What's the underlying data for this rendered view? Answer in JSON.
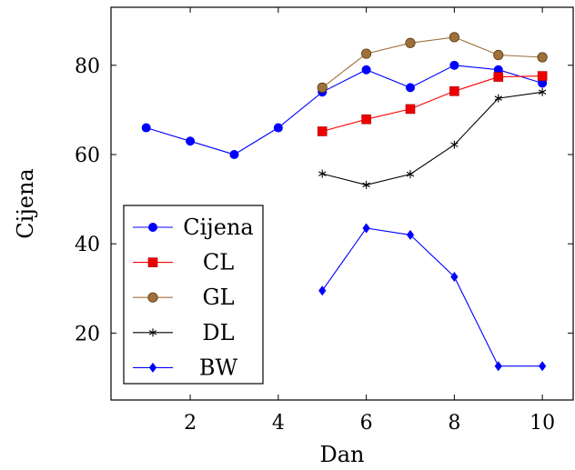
{
  "chart_data": {
    "type": "line",
    "title": "",
    "xlabel": "Dan",
    "ylabel": "Cijena",
    "xlim": [
      0.2,
      10.7
    ],
    "ylim": [
      5,
      93
    ],
    "xticks": [
      2,
      4,
      6,
      8,
      10
    ],
    "yticks": [
      20,
      40,
      60,
      80
    ],
    "grid": false,
    "legend_position": "bottom-left",
    "series": [
      {
        "name": "Cijena",
        "color": "#0000ff",
        "marker": "circle",
        "x": [
          1,
          2,
          3,
          4,
          5,
          6,
          7,
          8,
          9,
          10
        ],
        "y": [
          66,
          63,
          60,
          66,
          74,
          79,
          75,
          80,
          79,
          76
        ]
      },
      {
        "name": "CL",
        "color": "#ff0000",
        "line_color": "#ff0000",
        "marker": "square",
        "x": [
          5,
          6,
          7,
          8,
          9,
          10
        ],
        "y": [
          65.2,
          67.9,
          70.2,
          74.2,
          77.4,
          77.6
        ]
      },
      {
        "name": "GL",
        "color": "#a0703a",
        "line_color": "#a0703a",
        "marker": "circle-brown",
        "x": [
          5,
          6,
          7,
          8,
          9,
          10
        ],
        "y": [
          75,
          82.6,
          85,
          86.3,
          82.3,
          81.8
        ]
      },
      {
        "name": "DL",
        "color": "#000000",
        "line_color": "#000000",
        "marker": "asterisk",
        "x": [
          5,
          6,
          7,
          8,
          9,
          10
        ],
        "y": [
          55.7,
          53.2,
          55.6,
          62.2,
          72.6,
          74
        ]
      },
      {
        "name": "BW",
        "color": "#0000ff",
        "line_color": "#0000ff",
        "marker": "diamond",
        "x": [
          5,
          6,
          7,
          8,
          9,
          10
        ],
        "y": [
          29.5,
          43.5,
          42,
          32.6,
          12.6,
          12.6
        ]
      }
    ]
  }
}
